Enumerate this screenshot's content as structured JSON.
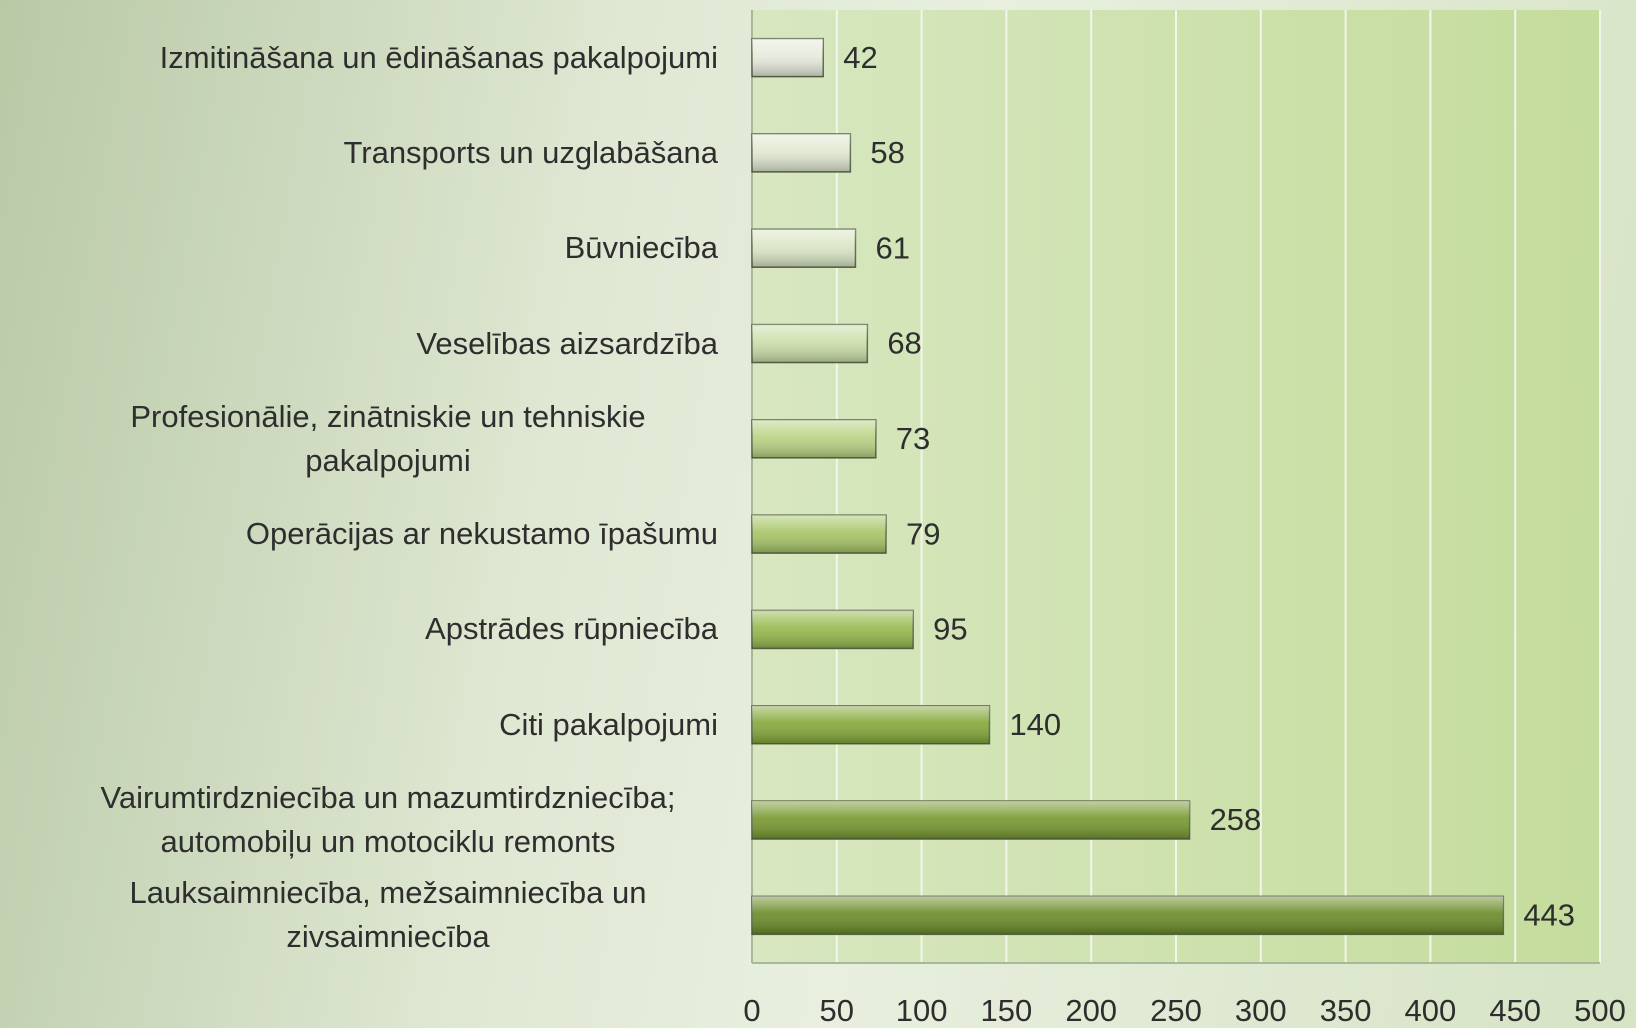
{
  "chart_data": {
    "type": "barh",
    "categories": [
      "Izmitināšana un ēdināšanas pakalpojumi",
      "Transports un uzglabāšana",
      "Būvniecība",
      "Veselības aizsardzība",
      "Profesionālie, zinātniskie un tehniskie pakalpojumi",
      "Operācijas ar nekustamo īpašumu",
      "Apstrādes rūpniecība",
      "Citi pakalpojumi",
      "Vairumtirdzniecība un mazumtirdzniecība; automobiļu un motociklu remonts",
      "Lauksaimniecība, mežsaimniecība un zivsaimniecība"
    ],
    "values": [
      42,
      58,
      61,
      68,
      73,
      79,
      95,
      140,
      258,
      443
    ],
    "colors": [
      "#e6eadc",
      "#e0e7d1",
      "#d9e5c3",
      "#cbdea8",
      "#b9d283",
      "#a6c566",
      "#96b94c",
      "#84a839",
      "#76982e",
      "#6a8b27"
    ],
    "xlim": [
      0,
      500
    ],
    "xticks": [
      0,
      50,
      100,
      150,
      200,
      250,
      300,
      350,
      400,
      450,
      500
    ],
    "grid": true
  }
}
